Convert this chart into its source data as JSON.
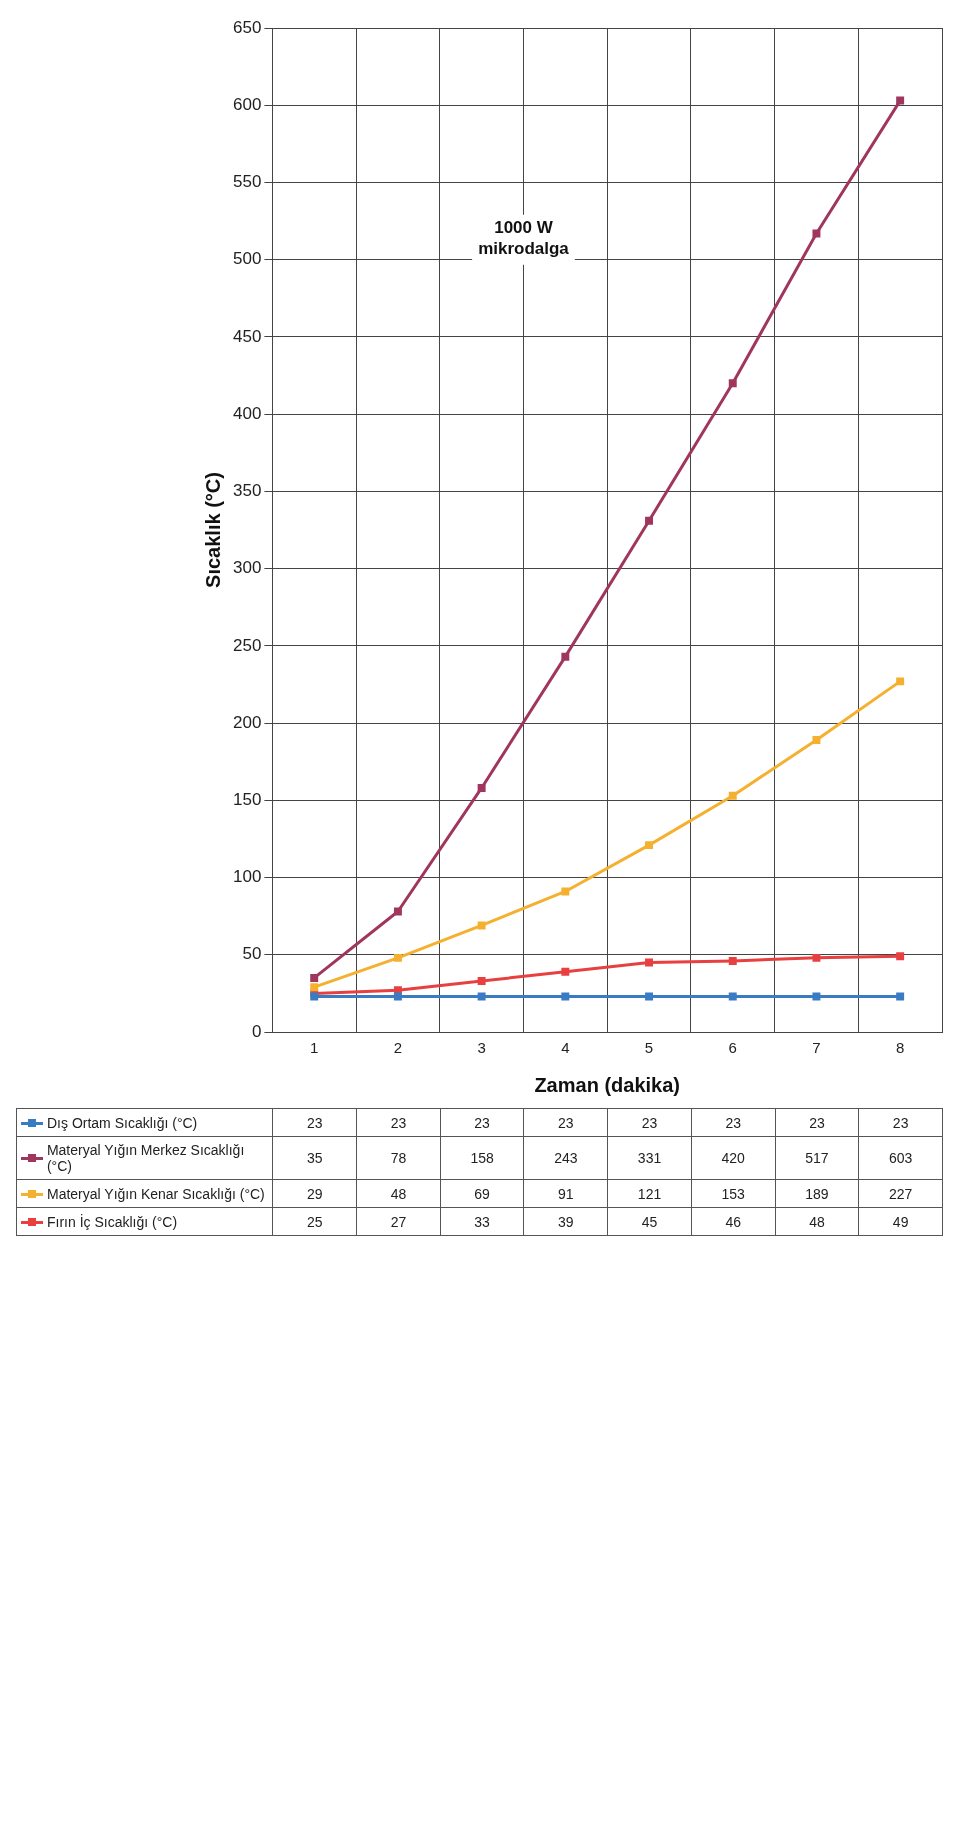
{
  "chart_data": {
    "type": "line",
    "xlabel": "Zaman (dakika)",
    "ylabel": "Sıcaklık (°C)",
    "categories": [
      "1",
      "2",
      "3",
      "4",
      "5",
      "6",
      "7",
      "8"
    ],
    "ylim": [
      0,
      650
    ],
    "yticks": [
      0,
      50,
      100,
      150,
      200,
      250,
      300,
      350,
      400,
      450,
      500,
      550,
      600,
      650
    ],
    "grid": true,
    "legend": "bottom",
    "marker": "square",
    "line_style": "solid",
    "data_labels": true,
    "annotations": [
      "1000 W mikrodalga"
    ],
    "series": [
      {
        "name": "Dış Ortam Sıcaklığı (°C)",
        "color": "#3a7cc4",
        "values": [
          23,
          23,
          23,
          23,
          23,
          23,
          23,
          23
        ]
      },
      {
        "name": "Materyal Yığın Merkez Sıcaklığı (°C)",
        "color": "#a0355e",
        "values": [
          35,
          78,
          158,
          243,
          331,
          420,
          517,
          603
        ]
      },
      {
        "name": "Materyal Yığın Kenar Sıcaklığı (°C)",
        "color": "#f5b030",
        "values": [
          29,
          48,
          69,
          91,
          121,
          153,
          189,
          227
        ]
      },
      {
        "name": "Fırın İç Sıcaklığı (°C)",
        "color": "#e84040",
        "values": [
          25,
          27,
          33,
          39,
          45,
          46,
          48,
          49
        ]
      }
    ]
  }
}
